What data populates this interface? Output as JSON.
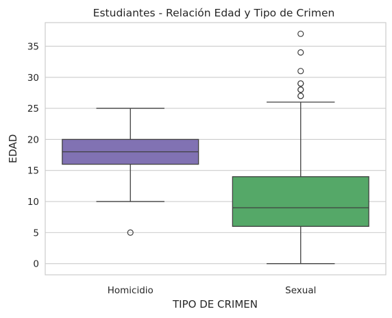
{
  "chart_data": {
    "type": "box",
    "title": "Estudiantes - Relación Edad y Tipo de Crimen",
    "xlabel": "TIPO DE CRIMEN",
    "ylabel": "EDAD",
    "categories": [
      "Homicidio",
      "Sexual"
    ],
    "ylim": [
      -1.8,
      38.8
    ],
    "yticks": [
      0,
      5,
      10,
      15,
      20,
      25,
      30,
      35
    ],
    "grid": true,
    "boxes": [
      {
        "category": "Homicidio",
        "whisker_low": 10,
        "q1": 16,
        "median": 18,
        "q3": 20,
        "whisker_high": 25,
        "outliers": [
          5
        ],
        "color": "#8172b3"
      },
      {
        "category": "Sexual",
        "whisker_low": 0,
        "q1": 6,
        "median": 9,
        "q3": 14,
        "whisker_high": 26,
        "outliers": [
          27,
          27,
          28,
          28,
          29,
          29,
          31,
          34,
          37
        ],
        "color": "#55a868"
      }
    ]
  }
}
